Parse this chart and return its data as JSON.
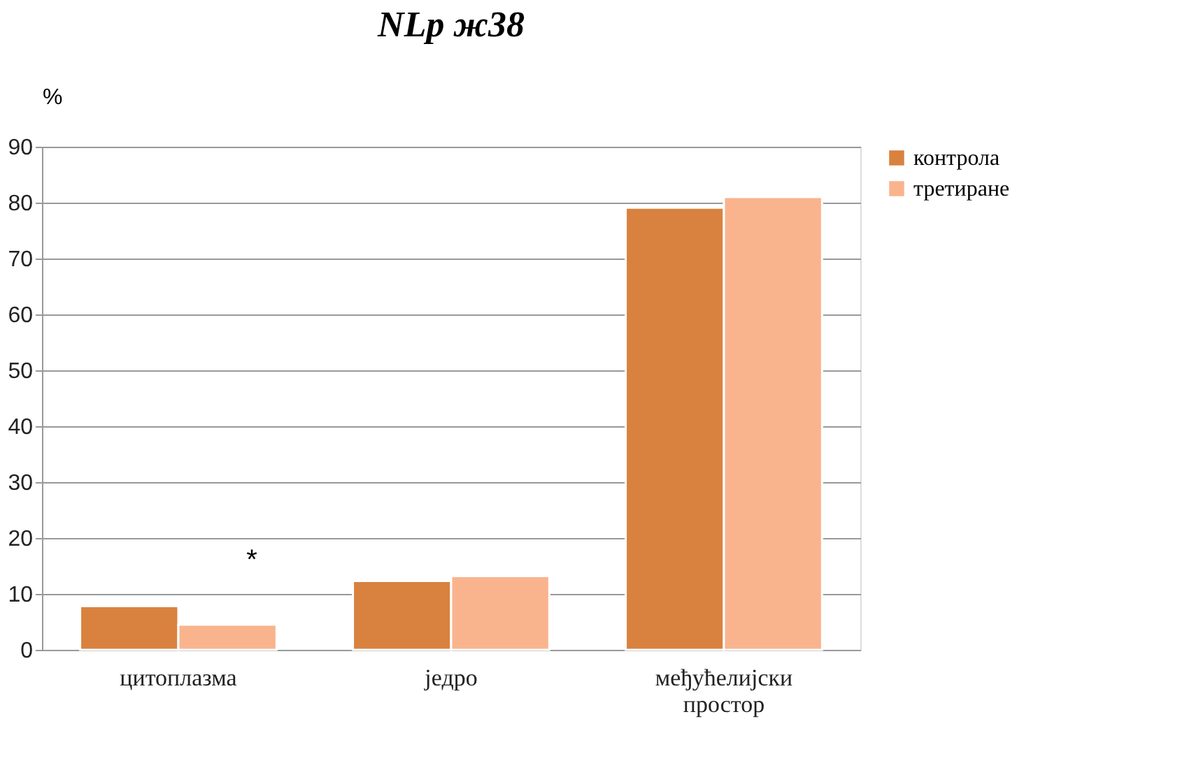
{
  "chart_data": {
    "type": "bar",
    "title": "NLp  ж38",
    "ylabel": "%",
    "categories": [
      "цитоплазма",
      "једро",
      "међућелијски простор"
    ],
    "series": [
      {
        "name": "контрола",
        "color": "#d9823f",
        "values": [
          7.8,
          12.3,
          79.1
        ]
      },
      {
        "name": "третиране",
        "color": "#f9b48e",
        "values": [
          4.5,
          13.2,
          81.0
        ]
      }
    ],
    "ylim": [
      0,
      90
    ],
    "yticks": [
      0,
      10,
      20,
      30,
      40,
      50,
      60,
      70,
      80,
      90
    ],
    "grid": "y",
    "legend": "right",
    "annotations": [
      "*"
    ]
  }
}
